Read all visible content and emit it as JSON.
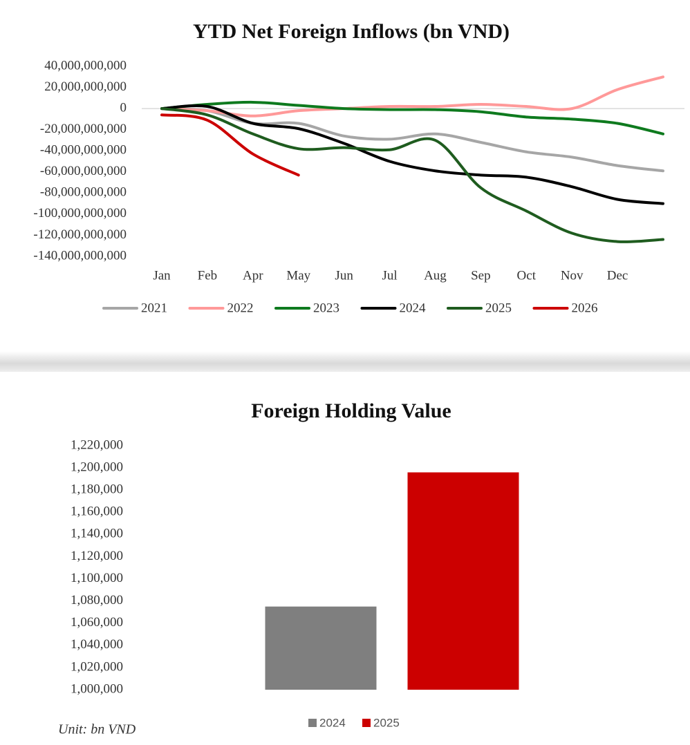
{
  "chart_data": [
    {
      "type": "line",
      "title": "YTD Net Foreign Inflows (bn VND)",
      "categories": [
        "Jan",
        "Feb",
        "Apr",
        "May",
        "Jun",
        "Jul",
        "Aug",
        "Sep",
        "Oct",
        "Nov",
        "Dec",
        null
      ],
      "series": [
        {
          "name": "2021",
          "color": "#a6a6a6",
          "values": [
            0,
            -2000000000,
            -14000000000,
            -14000000000,
            -26000000000,
            -29000000000,
            -24000000000,
            -32000000000,
            -41000000000,
            -46000000000,
            -54000000000,
            -59000000000
          ]
        },
        {
          "name": "2022",
          "color": "#ff9999",
          "values": [
            0,
            -2000000000,
            -7000000000,
            -2000000000,
            0,
            2000000000,
            2000000000,
            4000000000,
            2000000000,
            0,
            18000000000,
            30000000000
          ]
        },
        {
          "name": "2023",
          "color": "#0e7a1e",
          "values": [
            0,
            4000000000,
            6000000000,
            3000000000,
            0,
            -1000000000,
            -1000000000,
            -3000000000,
            -8000000000,
            -10000000000,
            -14000000000,
            -24000000000
          ]
        },
        {
          "name": "2024",
          "color": "#000000",
          "values": [
            0,
            2000000000,
            -14000000000,
            -19000000000,
            -33000000000,
            -50000000000,
            -59000000000,
            -63000000000,
            -65000000000,
            -74000000000,
            -86000000000,
            -90000000000
          ]
        },
        {
          "name": "2025",
          "color": "#1f5c1f",
          "values": [
            0,
            -6000000000,
            -24000000000,
            -38000000000,
            -37000000000,
            -39000000000,
            -30000000000,
            -75000000000,
            -97000000000,
            -118000000000,
            -126000000000,
            -124000000000
          ]
        },
        {
          "name": "2026",
          "color": "#cc0000",
          "values": [
            -6000000000,
            -11000000000,
            -43000000000,
            -63000000000,
            null,
            null,
            null,
            null,
            null,
            null,
            null,
            null
          ]
        }
      ],
      "ylim": [
        -140000000000,
        40000000000
      ],
      "yticks": [
        {
          "value": 40000000000,
          "label": "40,000,000,000"
        },
        {
          "value": 20000000000,
          "label": "20,000,000,000"
        },
        0,
        {
          "value": -20000000000,
          "label": "-20,000,000,000"
        },
        {
          "value": -40000000000,
          "label": "-40,000,000,000"
        },
        {
          "value": -60000000000,
          "label": "-60,000,000,000"
        },
        {
          "value": -80000000000,
          "label": "-80,000,000,000"
        },
        {
          "value": -100000000000,
          "label": "-100,000,000,000"
        },
        {
          "value": -120000000000,
          "label": "-120,000,000,000"
        },
        {
          "value": -140000000000,
          "label": "-140,000,000,000"
        }
      ],
      "grid": false,
      "legend": "bottom"
    },
    {
      "type": "bar",
      "title": "Foreign Holding Value",
      "series": [
        {
          "name": "2024",
          "color": "#7f7f7f",
          "values": [
            1075000
          ]
        },
        {
          "name": "2025",
          "color": "#cc0000",
          "values": [
            1196000
          ]
        }
      ],
      "ylim": [
        1000000,
        1220000
      ],
      "yticks": [
        {
          "value": 1000000,
          "label": "1,000,000"
        },
        {
          "value": 1020000,
          "label": "1,020,000"
        },
        {
          "value": 1040000,
          "label": "1,040,000"
        },
        {
          "value": 1060000,
          "label": "1,060,000"
        },
        {
          "value": 1080000,
          "label": "1,080,000"
        },
        {
          "value": 1100000,
          "label": "1,100,000"
        },
        {
          "value": 1120000,
          "label": "1,120,000"
        },
        {
          "value": 1140000,
          "label": "1,140,000"
        },
        {
          "value": 1160000,
          "label": "1,160,000"
        },
        {
          "value": 1180000,
          "label": "1,180,000"
        },
        {
          "value": 1200000,
          "label": "1,200,000"
        },
        {
          "value": 1220000,
          "label": "1,220,000"
        }
      ],
      "grid": false,
      "legend": "bottom",
      "annotation": "Unit: bn VND"
    }
  ]
}
